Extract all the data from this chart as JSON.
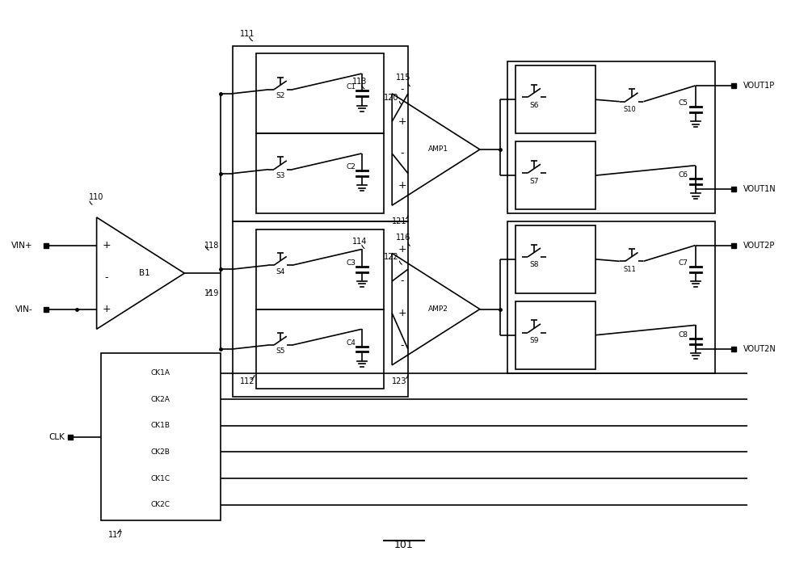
{
  "bg_color": "#ffffff",
  "lw": 1.2,
  "fig_width": 10.0,
  "fig_height": 6.98,
  "xlim": [
    0,
    100
  ],
  "ylim": [
    0,
    69.8
  ]
}
